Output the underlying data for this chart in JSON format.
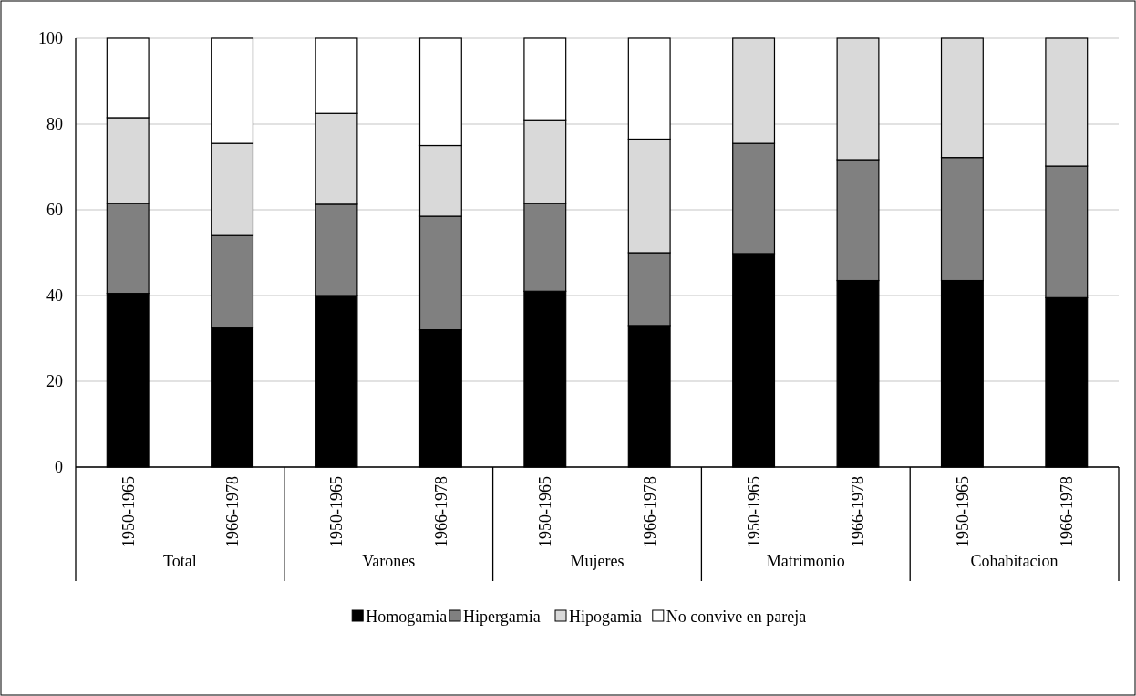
{
  "chart_data": {
    "type": "bar",
    "stacked": true,
    "categories": [
      "1950-1965",
      "1966-1978",
      "1950-1965",
      "1966-1978",
      "1950-1965",
      "1966-1978",
      "1950-1965",
      "1966-1978",
      "1950-1965",
      "1966-1978"
    ],
    "series": [
      {
        "name": "Homogamia",
        "color": "#000000",
        "values": [
          40.5,
          32.5,
          40,
          32,
          41,
          33,
          49.8,
          43.5,
          43.5,
          39.5
        ]
      },
      {
        "name": "Hipergamia",
        "color": "#808080",
        "values": [
          21,
          21.5,
          21.3,
          26.5,
          20.5,
          17,
          25.7,
          28.2,
          28.7,
          30.7
        ]
      },
      {
        "name": "Hipogamia",
        "color": "#d9d9d9",
        "values": [
          20,
          21.5,
          21.2,
          16.5,
          19.3,
          26.5,
          24.5,
          28.3,
          27.8,
          29.8
        ]
      },
      {
        "name": "No convive en pareja",
        "color": "#ffffff",
        "values": [
          18.5,
          24.5,
          17.5,
          25,
          19.2,
          23.5,
          0,
          0,
          0,
          0
        ]
      }
    ],
    "annotations": [
      "Total",
      "Varones",
      "Mujeres",
      "Matrimonio",
      "Cohabitacion"
    ],
    "ylim": [
      0,
      100
    ],
    "yticks": [
      0,
      20,
      40,
      60,
      80,
      100
    ],
    "grid": "y",
    "legend": "bottom"
  }
}
